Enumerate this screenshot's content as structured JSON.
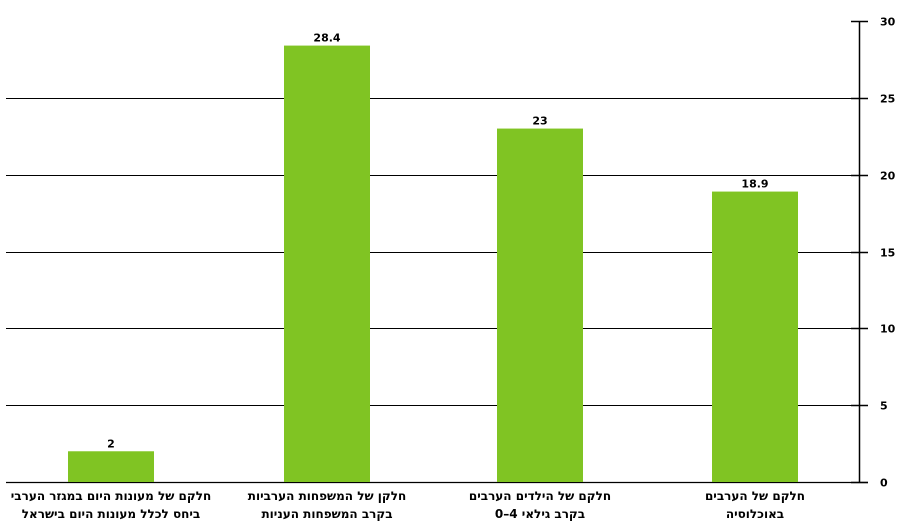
{
  "chart_data": {
    "type": "bar",
    "categories": [
      [
        "חלקם של מעונות היום במגזר הערבי",
        "ביחס לכלל מעונות היום בישראל"
      ],
      [
        "חלקן של המשפחות הערביות",
        "בקרב המשפחות העניות"
      ],
      [
        "חלקם של הילדים הערבים",
        "בקרב גילאי 4–0"
      ],
      [
        "חלקם של הערבים",
        "באוכלוסיה"
      ]
    ],
    "values": [
      2,
      28.4,
      23,
      18.9
    ],
    "value_labels": [
      "2",
      "28.4",
      "23",
      "18.9"
    ],
    "ylim": [
      0,
      30
    ],
    "yticks": [
      0,
      5,
      10,
      15,
      20,
      25,
      30
    ],
    "ytick_labels": [
      "0",
      "5",
      "10",
      "15",
      "20",
      "25",
      "30"
    ],
    "y_axis_side": "right",
    "grid": true,
    "colors": {
      "bar": "#80c423",
      "grid": "#000000",
      "axis": "#000000"
    }
  }
}
